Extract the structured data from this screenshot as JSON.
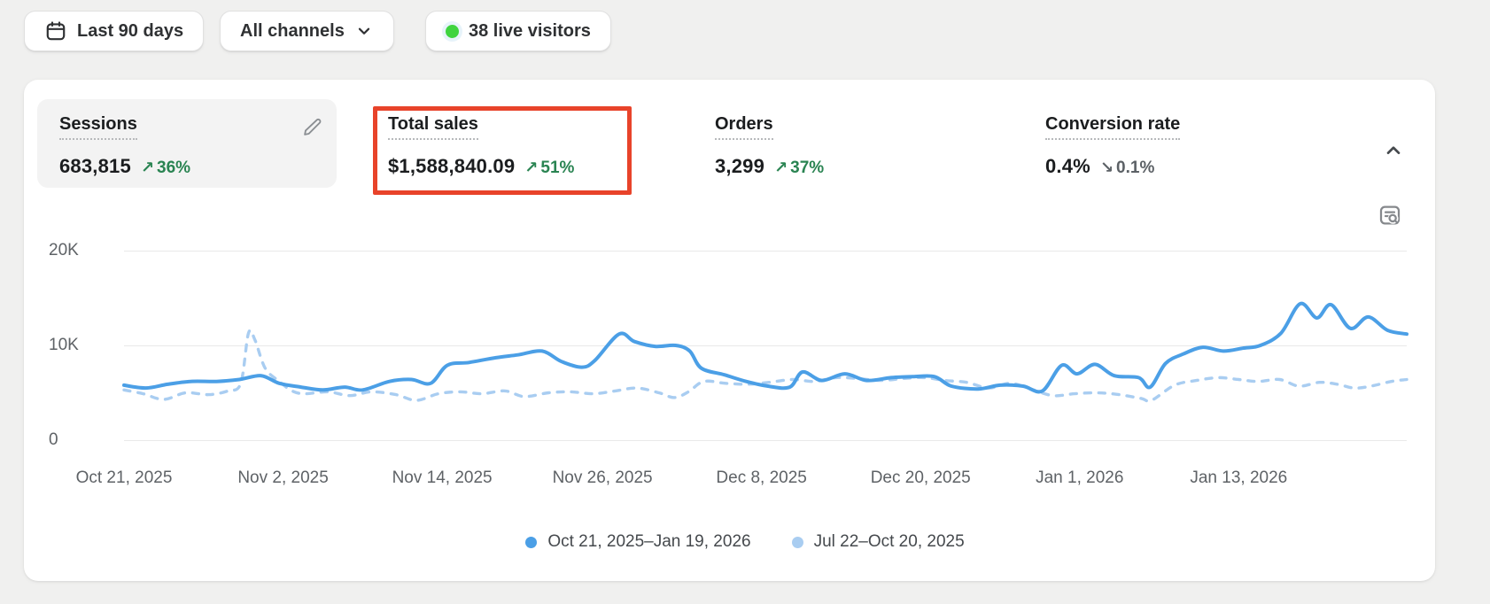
{
  "page": {
    "background_color": "#f0f0ef"
  },
  "filter_bar": {
    "date_range_button": {
      "label": "Last 90 days"
    },
    "channel_button": {
      "label": "All channels"
    },
    "live_visitors_badge": {
      "label": "38 live visitors",
      "dot_color": "#3fd43f"
    }
  },
  "icons": {
    "trend_up": "↗",
    "trend_down": "↘"
  },
  "metrics": {
    "annotation_color": "#e8432a",
    "delta_up_color": "#2a8452",
    "delta_down_color": "#5c6166",
    "items": [
      {
        "label": "Sessions",
        "value": "683,815",
        "delta": "36%",
        "direction": "up",
        "selected": true,
        "editable": true
      },
      {
        "label": "Total sales",
        "value": "$1,588,840.09",
        "delta": "51%",
        "direction": "up",
        "annotated": true
      },
      {
        "label": "Orders",
        "value": "3,299",
        "delta": "37%",
        "direction": "up"
      },
      {
        "label": "Conversion rate",
        "value": "0.4%",
        "delta": "0.1%",
        "direction": "down"
      }
    ]
  },
  "chart_data": {
    "type": "line",
    "title": "",
    "xlabel": "",
    "ylabel": "",
    "grid": true,
    "legend_position": "bottom",
    "y_unit": "K",
    "ylim": [
      0,
      21.5
    ],
    "y_ticks": [
      {
        "value": 0,
        "label": "0"
      },
      {
        "value": 10,
        "label": "10K"
      },
      {
        "value": 20,
        "label": "20K"
      }
    ],
    "x_ticks": [
      {
        "f": 0.0,
        "label": "Oct 21, 2025"
      },
      {
        "f": 0.124,
        "label": "Nov 2, 2025"
      },
      {
        "f": 0.248,
        "label": "Nov 14, 2025"
      },
      {
        "f": 0.373,
        "label": "Nov 26, 2025"
      },
      {
        "f": 0.497,
        "label": "Dec 8, 2025"
      },
      {
        "f": 0.621,
        "label": "Dec 20, 2025"
      },
      {
        "f": 0.745,
        "label": "Jan 1, 2026"
      },
      {
        "f": 0.869,
        "label": "Jan 13, 2026"
      }
    ],
    "series": [
      {
        "name": "Oct 21, 2025–Jan 19, 2026",
        "color": "#4b9fe6",
        "style": "solid",
        "points": [
          [
            0.0,
            5.8
          ],
          [
            0.017,
            5.5
          ],
          [
            0.034,
            5.9
          ],
          [
            0.052,
            6.2
          ],
          [
            0.072,
            6.2
          ],
          [
            0.09,
            6.4
          ],
          [
            0.107,
            6.8
          ],
          [
            0.121,
            6.0
          ],
          [
            0.138,
            5.6
          ],
          [
            0.155,
            5.3
          ],
          [
            0.172,
            5.6
          ],
          [
            0.186,
            5.3
          ],
          [
            0.207,
            6.2
          ],
          [
            0.224,
            6.4
          ],
          [
            0.239,
            6.0
          ],
          [
            0.252,
            7.9
          ],
          [
            0.269,
            8.2
          ],
          [
            0.29,
            8.7
          ],
          [
            0.307,
            9.0
          ],
          [
            0.326,
            9.4
          ],
          [
            0.341,
            8.3
          ],
          [
            0.357,
            7.7
          ],
          [
            0.367,
            8.4
          ],
          [
            0.386,
            11.2
          ],
          [
            0.398,
            10.4
          ],
          [
            0.414,
            9.9
          ],
          [
            0.43,
            10.0
          ],
          [
            0.441,
            9.4
          ],
          [
            0.45,
            7.6
          ],
          [
            0.468,
            6.9
          ],
          [
            0.485,
            6.2
          ],
          [
            0.502,
            5.7
          ],
          [
            0.519,
            5.6
          ],
          [
            0.529,
            7.2
          ],
          [
            0.544,
            6.3
          ],
          [
            0.562,
            7.0
          ],
          [
            0.579,
            6.3
          ],
          [
            0.598,
            6.6
          ],
          [
            0.615,
            6.7
          ],
          [
            0.632,
            6.7
          ],
          [
            0.645,
            5.7
          ],
          [
            0.666,
            5.4
          ],
          [
            0.683,
            5.8
          ],
          [
            0.701,
            5.7
          ],
          [
            0.716,
            5.2
          ],
          [
            0.731,
            7.9
          ],
          [
            0.743,
            7.0
          ],
          [
            0.757,
            8.0
          ],
          [
            0.772,
            6.8
          ],
          [
            0.791,
            6.6
          ],
          [
            0.8,
            5.6
          ],
          [
            0.812,
            8.1
          ],
          [
            0.826,
            9.1
          ],
          [
            0.841,
            9.8
          ],
          [
            0.857,
            9.4
          ],
          [
            0.872,
            9.7
          ],
          [
            0.886,
            10.0
          ],
          [
            0.902,
            11.3
          ],
          [
            0.917,
            14.4
          ],
          [
            0.93,
            12.9
          ],
          [
            0.941,
            14.3
          ],
          [
            0.956,
            11.8
          ],
          [
            0.97,
            13.0
          ],
          [
            0.985,
            11.6
          ],
          [
            1.0,
            11.2
          ]
        ]
      },
      {
        "name": "Jul 22–Oct 20, 2025",
        "color": "#a9cdf1",
        "style": "dashed",
        "points": [
          [
            0.0,
            5.3
          ],
          [
            0.015,
            4.9
          ],
          [
            0.031,
            4.3
          ],
          [
            0.048,
            5.0
          ],
          [
            0.066,
            4.8
          ],
          [
            0.081,
            5.2
          ],
          [
            0.091,
            6.0
          ],
          [
            0.097,
            11.3
          ],
          [
            0.102,
            10.6
          ],
          [
            0.11,
            7.6
          ],
          [
            0.121,
            6.2
          ],
          [
            0.131,
            5.2
          ],
          [
            0.141,
            4.9
          ],
          [
            0.159,
            5.1
          ],
          [
            0.176,
            4.7
          ],
          [
            0.193,
            5.1
          ],
          [
            0.212,
            4.8
          ],
          [
            0.228,
            4.2
          ],
          [
            0.245,
            4.9
          ],
          [
            0.262,
            5.1
          ],
          [
            0.279,
            4.9
          ],
          [
            0.297,
            5.2
          ],
          [
            0.312,
            4.6
          ],
          [
            0.331,
            5.0
          ],
          [
            0.348,
            5.1
          ],
          [
            0.366,
            4.9
          ],
          [
            0.383,
            5.2
          ],
          [
            0.4,
            5.5
          ],
          [
            0.417,
            5.0
          ],
          [
            0.429,
            4.5
          ],
          [
            0.44,
            5.1
          ],
          [
            0.452,
            6.2
          ],
          [
            0.469,
            6.0
          ],
          [
            0.486,
            5.9
          ],
          [
            0.503,
            6.1
          ],
          [
            0.521,
            6.4
          ],
          [
            0.538,
            6.2
          ],
          [
            0.555,
            6.6
          ],
          [
            0.572,
            6.5
          ],
          [
            0.59,
            6.3
          ],
          [
            0.607,
            6.5
          ],
          [
            0.624,
            6.6
          ],
          [
            0.64,
            6.3
          ],
          [
            0.657,
            6.1
          ],
          [
            0.674,
            5.5
          ],
          [
            0.691,
            6.0
          ],
          [
            0.707,
            5.4
          ],
          [
            0.724,
            4.7
          ],
          [
            0.741,
            4.9
          ],
          [
            0.759,
            5.0
          ],
          [
            0.776,
            4.8
          ],
          [
            0.793,
            4.4
          ],
          [
            0.801,
            4.2
          ],
          [
            0.819,
            5.8
          ],
          [
            0.836,
            6.3
          ],
          [
            0.853,
            6.6
          ],
          [
            0.869,
            6.4
          ],
          [
            0.884,
            6.2
          ],
          [
            0.901,
            6.4
          ],
          [
            0.916,
            5.7
          ],
          [
            0.932,
            6.1
          ],
          [
            0.946,
            5.9
          ],
          [
            0.959,
            5.5
          ],
          [
            0.972,
            5.7
          ],
          [
            0.988,
            6.2
          ],
          [
            1.0,
            6.4
          ]
        ]
      }
    ]
  }
}
